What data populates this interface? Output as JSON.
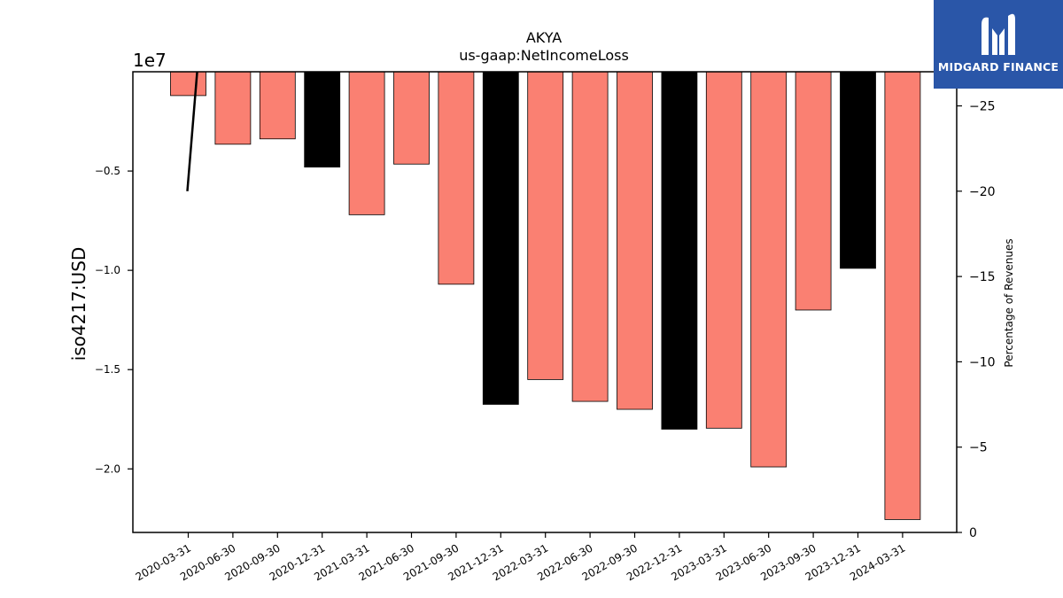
{
  "chart_data": {
    "type": "bar",
    "title": "AKYA",
    "subtitle": "us-gaap:NetIncomeLoss",
    "ylabel": "iso4217:USD",
    "y_offset_label": "1e7",
    "y2label": "Percentage of Revenues",
    "categories": [
      "2020-03-31",
      "2020-06-30",
      "2020-09-30",
      "2020-12-31",
      "2021-03-31",
      "2021-06-30",
      "2021-09-30",
      "2021-12-31",
      "2022-03-31",
      "2022-06-30",
      "2022-09-30",
      "2022-12-31",
      "2023-03-31",
      "2023-06-30",
      "2023-09-30",
      "2023-12-31",
      "2024-03-31"
    ],
    "values": [
      -1200000,
      -3650000,
      -3380000,
      -4800000,
      -7200000,
      -4650000,
      -10700000,
      -16750000,
      -15500000,
      -16600000,
      -17000000,
      -18000000,
      -17950000,
      -19900000,
      -12000000,
      -9900000,
      -22550000
    ],
    "bar_kinds": [
      "quarter",
      "quarter",
      "quarter",
      "annual",
      "quarter",
      "quarter",
      "quarter",
      "annual",
      "quarter",
      "quarter",
      "quarter",
      "annual",
      "quarter",
      "quarter",
      "quarter",
      "annual",
      "quarter"
    ],
    "colors": {
      "quarter": "#fa8072",
      "annual": "#000000",
      "line": "#000000"
    },
    "ylim": [
      -23200000,
      0
    ],
    "yticks": [
      -20000000,
      -15000000,
      -10000000,
      -5000000
    ],
    "ytick_labels": [
      "−2.0",
      "−1.5",
      "−1.0",
      "−0.5"
    ],
    "y2lim": [
      0,
      -27
    ],
    "y2ticks": [
      -25,
      -20,
      -15,
      -10,
      -5,
      0
    ],
    "y2tick_labels": [
      "−25",
      "−20",
      "−15",
      "−10",
      "−5",
      "0"
    ],
    "line_series": [
      {
        "x_index": -0.02,
        "y": -20
      },
      {
        "x_index": 0.2,
        "y": -27
      }
    ]
  },
  "logo": {
    "text": "MIDGARD FINANCE"
  }
}
